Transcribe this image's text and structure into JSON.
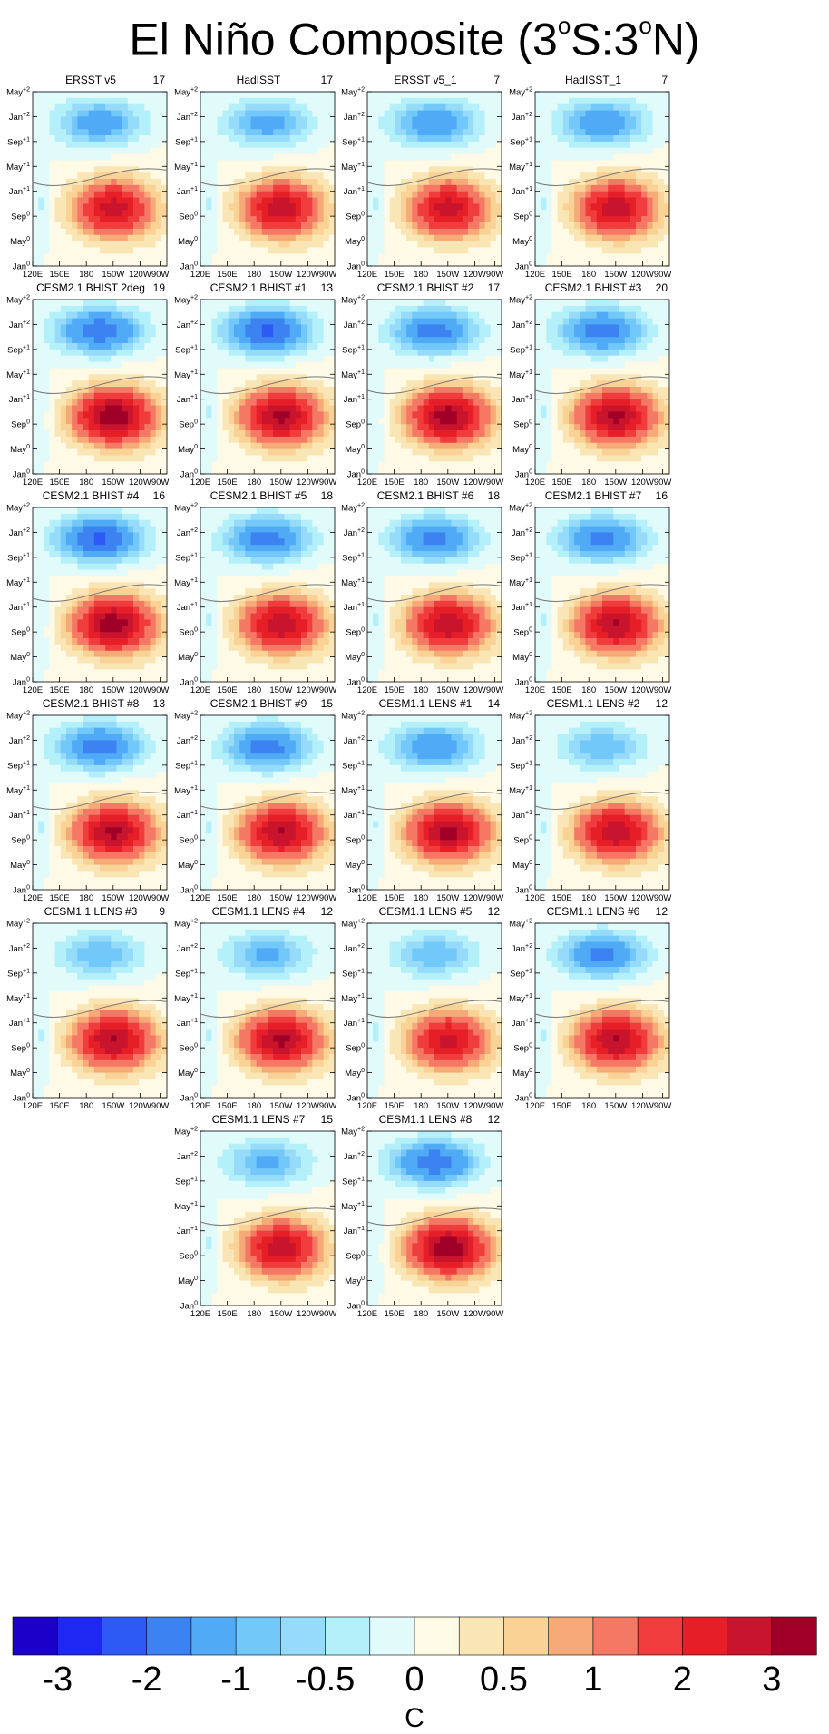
{
  "title": {
    "prefix": "El Niño Composite (3",
    "deg1": "o",
    "mid": "S:3",
    "deg2": "o",
    "suffix": "N)"
  },
  "chart_data": {
    "type": "heatmap",
    "description_type": "Hovmoller composite panels (longitude vs time)",
    "x_ticks": [
      "120E",
      "150E",
      "180",
      "150W",
      "120W",
      "90W"
    ],
    "y_ticks": [
      {
        "label": "Jan",
        "sup": "0"
      },
      {
        "label": "May",
        "sup": "0"
      },
      {
        "label": "Sep",
        "sup": "0"
      },
      {
        "label": "Jan",
        "sup": "+1"
      },
      {
        "label": "May",
        "sup": "+1"
      },
      {
        "label": "Sep",
        "sup": "+1"
      },
      {
        "label": "Jan",
        "sup": "+2"
      },
      {
        "label": "May",
        "sup": "+2"
      }
    ],
    "panels": [
      {
        "name": "ERSST v5",
        "count": "17",
        "warm": 0.8,
        "cold": 0.55
      },
      {
        "name": "HadISST",
        "count": "17",
        "warm": 0.82,
        "cold": 0.5
      },
      {
        "name": "ERSST v5_1",
        "count": "7",
        "warm": 0.8,
        "cold": 0.6
      },
      {
        "name": "HadISST_1",
        "count": "7",
        "warm": 0.82,
        "cold": 0.58
      },
      {
        "name": "CESM2.1 BHIST 2deg",
        "count": "19",
        "warm": 1.0,
        "cold": 0.75
      },
      {
        "name": "CESM2.1 BHIST #1",
        "count": "13",
        "warm": 0.9,
        "cold": 0.85
      },
      {
        "name": "CESM2.1 BHIST #2",
        "count": "17",
        "warm": 0.95,
        "cold": 0.7
      },
      {
        "name": "CESM2.1 BHIST #3",
        "count": "20",
        "warm": 0.9,
        "cold": 0.72
      },
      {
        "name": "CESM2.1 BHIST #4",
        "count": "16",
        "warm": 0.97,
        "cold": 0.85
      },
      {
        "name": "CESM2.1 BHIST #5",
        "count": "18",
        "warm": 0.85,
        "cold": 0.7
      },
      {
        "name": "CESM2.1 BHIST #6",
        "count": "18",
        "warm": 0.85,
        "cold": 0.68
      },
      {
        "name": "CESM2.1 BHIST #7",
        "count": "16",
        "warm": 0.88,
        "cold": 0.68
      },
      {
        "name": "CESM2.1 BHIST #8",
        "count": "13",
        "warm": 0.9,
        "cold": 0.72
      },
      {
        "name": "CESM2.1 BHIST #9",
        "count": "15",
        "warm": 0.88,
        "cold": 0.7
      },
      {
        "name": "CESM1.1 LENS #1",
        "count": "14",
        "warm": 0.92,
        "cold": 0.6
      },
      {
        "name": "CESM1.1 LENS #2",
        "count": "12",
        "warm": 0.85,
        "cold": 0.4
      },
      {
        "name": "CESM1.1 LENS #3",
        "count": "9",
        "warm": 0.88,
        "cold": 0.4
      },
      {
        "name": "CESM1.1 LENS #4",
        "count": "12",
        "warm": 0.9,
        "cold": 0.45
      },
      {
        "name": "CESM1.1 LENS #5",
        "count": "12",
        "warm": 0.78,
        "cold": 0.4
      },
      {
        "name": "CESM1.1 LENS #6",
        "count": "12",
        "warm": 0.88,
        "cold": 0.65
      },
      {
        "name": "CESM1.1 LENS #7",
        "count": "15",
        "warm": 0.82,
        "cold": 0.45
      },
      {
        "name": "CESM1.1 LENS #8",
        "count": "12",
        "warm": 0.98,
        "cold": 0.75
      }
    ],
    "colorbar": {
      "colors": [
        "#1a00c8",
        "#1e28f0",
        "#2d5af5",
        "#3c82f0",
        "#50aaf5",
        "#73c8fa",
        "#96dcfa",
        "#b4f0fa",
        "#e1fafa",
        "#fffae6",
        "#fae6b4",
        "#fad296",
        "#f5aa78",
        "#f57864",
        "#f03c3c",
        "#e61e28",
        "#c8142d",
        "#a00028"
      ],
      "labels": [
        "-3",
        "-2",
        "-1",
        "-0.5",
        "0",
        "0.5",
        "1",
        "2",
        "3"
      ],
      "unit": "C"
    }
  }
}
